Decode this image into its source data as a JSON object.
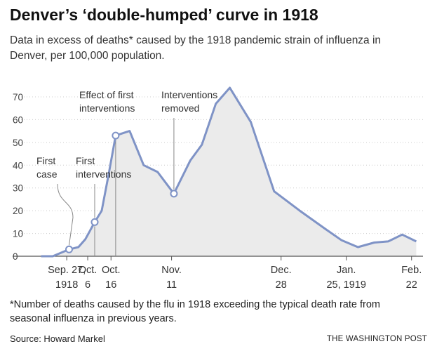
{
  "header": {
    "title": "Denver’s ‘double-humped’ curve in 1918",
    "subtitle": "Data in excess of deaths* caused by the 1918 pandemic strain of influenza in Denver, per 100,000 population."
  },
  "footer": {
    "footnote": "*Number of deaths caused by the flu in 1918 exceeding the typical death rate from seasonal influenza in previous years.",
    "source": "Source: Howard Markel",
    "credit": "THE WASHINGTON POST"
  },
  "colors": {
    "line": "#7f93c6",
    "fill": "#ebebeb",
    "axis": "#555555",
    "grid": "#cccccc"
  },
  "chart_data": {
    "type": "area",
    "title": "Denver’s ‘double-humped’ curve in 1918",
    "xlabel": "",
    "ylabel": "",
    "ylim": [
      0,
      75
    ],
    "yticks": [
      0,
      10,
      20,
      30,
      40,
      50,
      60,
      70
    ],
    "grid": true,
    "xlim": [
      "1918-09-11",
      "1919-02-26"
    ],
    "xtick_labels": [
      {
        "date": "1918-09-27",
        "lines": [
          "Sep. 27,",
          "1918"
        ]
      },
      {
        "date": "1918-10-06",
        "lines": [
          "Oct.",
          "6"
        ]
      },
      {
        "date": "1918-10-16",
        "lines": [
          "Oct.",
          "16"
        ]
      },
      {
        "date": "1918-11-11",
        "lines": [
          "Nov.",
          "11"
        ]
      },
      {
        "date": "1918-12-28",
        "lines": [
          "Dec.",
          "28"
        ]
      },
      {
        "date": "1919-01-25",
        "lines": [
          "Jan.",
          "25, 1919"
        ]
      },
      {
        "date": "1919-02-22",
        "lines": [
          "Feb.",
          "22"
        ]
      }
    ],
    "series": [
      {
        "points": [
          {
            "x": "1918-09-16",
            "y": 0
          },
          {
            "x": "1918-09-21",
            "y": 0
          },
          {
            "x": "1918-09-28",
            "y": 3
          },
          {
            "x": "1918-10-02",
            "y": 4
          },
          {
            "x": "1918-10-05",
            "y": 7.5
          },
          {
            "x": "1918-10-09",
            "y": 15
          },
          {
            "x": "1918-10-12",
            "y": 20
          },
          {
            "x": "1918-10-15",
            "y": 36
          },
          {
            "x": "1918-10-18",
            "y": 53
          },
          {
            "x": "1918-10-24",
            "y": 55
          },
          {
            "x": "1918-10-30",
            "y": 40
          },
          {
            "x": "1918-11-05",
            "y": 37
          },
          {
            "x": "1918-11-12",
            "y": 27.5
          },
          {
            "x": "1918-11-19",
            "y": 42
          },
          {
            "x": "1918-11-24",
            "y": 49
          },
          {
            "x": "1918-11-30",
            "y": 67
          },
          {
            "x": "1918-12-06",
            "y": 74
          },
          {
            "x": "1918-12-15",
            "y": 59
          },
          {
            "x": "1918-12-25",
            "y": 28.5
          },
          {
            "x": "1919-01-05",
            "y": 20
          },
          {
            "x": "1919-01-16",
            "y": 12
          },
          {
            "x": "1919-01-23",
            "y": 7
          },
          {
            "x": "1919-01-30",
            "y": 4
          },
          {
            "x": "1919-02-06",
            "y": 6
          },
          {
            "x": "1919-02-12",
            "y": 6.5
          },
          {
            "x": "1919-02-18",
            "y": 9.5
          },
          {
            "x": "1919-02-24",
            "y": 6.5
          }
        ]
      }
    ],
    "annotations": [
      {
        "lines": [
          "First",
          "case"
        ],
        "x": "1918-09-28",
        "y": 3,
        "marker": true
      },
      {
        "lines": [
          "First",
          "interventions"
        ],
        "x": "1918-10-09",
        "y": 15,
        "marker": true
      },
      {
        "lines": [
          "Effect of first",
          "interventions"
        ],
        "x": "1918-10-18",
        "y": 53,
        "marker": true
      },
      {
        "lines": [
          "Interventions",
          "removed"
        ],
        "x": "1918-11-12",
        "y": 27.5,
        "marker": true
      }
    ]
  }
}
